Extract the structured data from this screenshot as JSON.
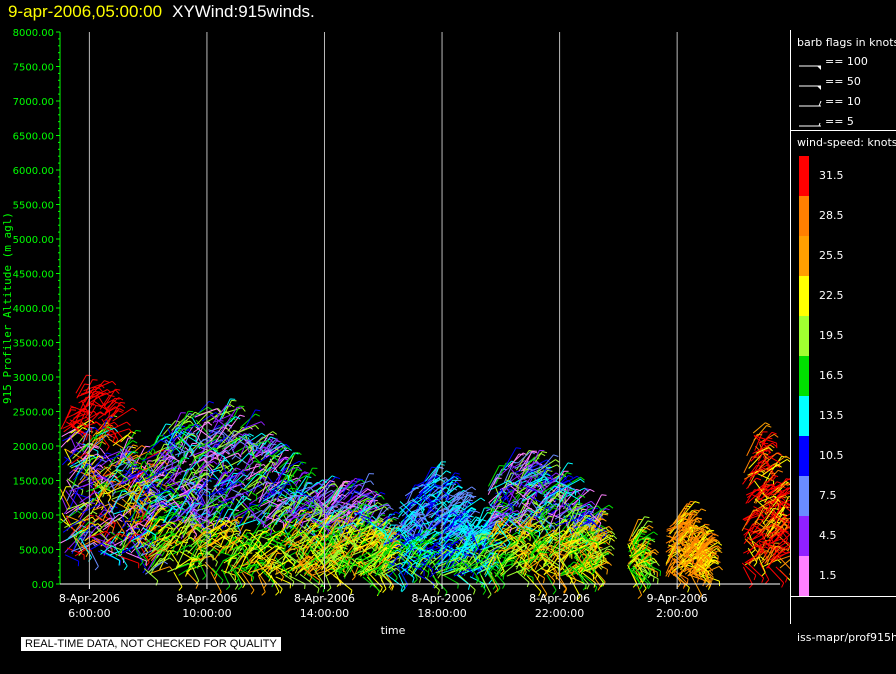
{
  "header": {
    "timestamp": "9-apr-2006,05:00:00",
    "product": "XYWind:915winds."
  },
  "chart_data": {
    "type": "scatter",
    "subtype": "wind-barbs",
    "ylabel": "915 Profiler Altitude (m agl)",
    "xlabel": "time",
    "y_ticks": [
      "0.00",
      "500.00",
      "1000.00",
      "1500.00",
      "2000.00",
      "2500.00",
      "3000.00",
      "3500.00",
      "4000.00",
      "4500.00",
      "5000.00",
      "5500.00",
      "6000.00",
      "6500.00",
      "7000.00",
      "7500.00",
      "8000.00"
    ],
    "ylim": [
      0,
      8000
    ],
    "x_ticks": [
      {
        "date": "8-Apr-2006",
        "time": "6:00:00",
        "t": 6
      },
      {
        "date": "8-Apr-2006",
        "time": "10:00:00",
        "t": 10
      },
      {
        "date": "8-Apr-2006",
        "time": "14:00:00",
        "t": 14
      },
      {
        "date": "8-Apr-2006",
        "time": "18:00:00",
        "t": 18
      },
      {
        "date": "8-Apr-2006",
        "time": "22:00:00",
        "t": 22
      },
      {
        "date": "9-Apr-2006",
        "time": "2:00:00",
        "t": 26
      }
    ],
    "xlim": [
      5,
      29.5
    ],
    "grid_vertical": true,
    "data_extent": [
      {
        "t_start": 5.0,
        "t_end": 7.8,
        "alt_min": 400,
        "alt_max": 2900
      },
      {
        "t_start": 7.8,
        "t_end": 14.0,
        "alt_min": 100,
        "alt_max": 2500
      },
      {
        "t_start": 14.0,
        "t_end": 16.2,
        "alt_min": 100,
        "alt_max": 1400
      },
      {
        "t_start": 16.5,
        "t_end": 19.5,
        "alt_min": 100,
        "alt_max": 1500
      },
      {
        "t_start": 19.5,
        "t_end": 23.2,
        "alt_min": 100,
        "alt_max": 1800
      },
      {
        "t_start": 24.3,
        "t_end": 24.8,
        "alt_min": 150,
        "alt_max": 700
      },
      {
        "t_start": 25.6,
        "t_end": 26.9,
        "alt_min": 100,
        "alt_max": 1000
      },
      {
        "t_start": 28.2,
        "t_end": 29.5,
        "alt_min": 200,
        "alt_max": 2200
      }
    ]
  },
  "legend": {
    "barb_title": "barb flags in knots",
    "barb_flags": [
      {
        "label": "== 100",
        "kind": "flag2"
      },
      {
        "label": "== 50",
        "kind": "flag"
      },
      {
        "label": "== 10",
        "kind": "full"
      },
      {
        "label": "== 5",
        "kind": "half"
      }
    ],
    "speed_title": "wind-speed: knots",
    "colorbar": [
      {
        "label": "31.5",
        "color": "#ff0000"
      },
      {
        "label": "28.5",
        "color": "#ff7f00"
      },
      {
        "label": "25.5",
        "color": "#ff9f00"
      },
      {
        "label": "22.5",
        "color": "#ffff00"
      },
      {
        "label": "19.5",
        "color": "#a0ff30"
      },
      {
        "label": "16.5",
        "color": "#00e000"
      },
      {
        "label": "13.5",
        "color": "#00ffff"
      },
      {
        "label": "10.5",
        "color": "#0000ff"
      },
      {
        "label": "7.5",
        "color": "#6a8cff"
      },
      {
        "label": "4.5",
        "color": "#9020ff"
      },
      {
        "label": "1.5",
        "color": "#ff80ff"
      }
    ]
  },
  "source_label": "iss-mapr/prof915h",
  "notice": "REAL-TIME DATA, NOT CHECKED FOR QUALITY",
  "colors": {
    "axis": "#00ff00",
    "text": "#ffffff",
    "timestamp": "#ffff00",
    "background": "#000000"
  }
}
